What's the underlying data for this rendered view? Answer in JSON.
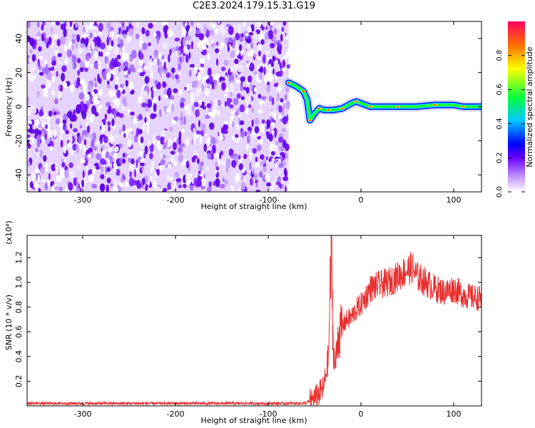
{
  "title": "C2E3.2024.179.15.31.G19",
  "chart_data": [
    {
      "type": "heatmap",
      "title": "C2E3.2024.179.15.31.G19",
      "xlabel": "Height of straight line (km)",
      "ylabel": "Frequency (Hz)",
      "xlim": [
        -360,
        130
      ],
      "ylim": [
        -50,
        50
      ],
      "xticks": [
        "-300",
        "-200",
        "-100",
        "0",
        "100"
      ],
      "xtick_values": [
        -300,
        -200,
        -100,
        0,
        100
      ],
      "yticks": [
        "40",
        "20",
        "0",
        "-20",
        "-40"
      ],
      "ytick_values": [
        40,
        20,
        0,
        -20,
        -40
      ],
      "noise_region_x": [
        -360,
        -78
      ],
      "signal_track": {
        "x": [
          -78,
          -70,
          -62,
          -58,
          -55,
          -50,
          -45,
          -40,
          -35,
          -30,
          -20,
          -10,
          -5,
          0,
          10,
          20,
          40,
          60,
          80,
          100,
          110,
          130
        ],
        "y": [
          14,
          12,
          9,
          4,
          -8,
          -4,
          -1,
          -2,
          -2,
          -2,
          -1,
          2,
          3,
          2,
          0,
          0,
          0,
          0,
          1,
          1,
          0,
          0
        ]
      },
      "colorbar": {
        "label": "Normalized spectral amplitude",
        "range": [
          0,
          1
        ],
        "ticks": [
          "0.0",
          "0.2",
          "0.4",
          "0.6",
          "0.8"
        ],
        "tick_values": [
          0,
          0.2,
          0.4,
          0.6,
          0.8
        ]
      }
    },
    {
      "type": "line",
      "xlabel": "Height of straight line (km)",
      "ylabel": "SNR (10 * v/v)",
      "scale_note": "(x10⁴)",
      "xlim": [
        -360,
        130
      ],
      "ylim": [
        0,
        1.38
      ],
      "xticks": [
        "-300",
        "-200",
        "-100",
        "0",
        "100"
      ],
      "xtick_values": [
        -300,
        -200,
        -100,
        0,
        100
      ],
      "yticks": [
        "0.2",
        "0.4",
        "0.6",
        "0.8",
        "1.0",
        "1.2"
      ],
      "ytick_values": [
        0.2,
        0.4,
        0.6,
        0.8,
        1.0,
        1.2
      ],
      "series": [
        {
          "color": "#e83030",
          "x": [
            -360,
            -300,
            -200,
            -100,
            -60,
            -50,
            -45,
            -40,
            -35,
            -32,
            -30,
            -28,
            -25,
            -22,
            -20,
            -15,
            -10,
            -5,
            0,
            5,
            10,
            20,
            30,
            40,
            50,
            55,
            60,
            70,
            80,
            90,
            100,
            110,
            120,
            130
          ],
          "y": [
            0.02,
            0.02,
            0.02,
            0.02,
            0.02,
            0.06,
            0.1,
            0.15,
            0.4,
            1.3,
            0.5,
            0.3,
            0.55,
            0.6,
            0.65,
            0.7,
            0.72,
            0.78,
            0.82,
            0.88,
            0.95,
            0.98,
            1.0,
            1.05,
            1.1,
            1.12,
            1.05,
            1.0,
            0.95,
            0.92,
            0.95,
            0.9,
            0.88,
            0.87
          ]
        }
      ]
    }
  ]
}
